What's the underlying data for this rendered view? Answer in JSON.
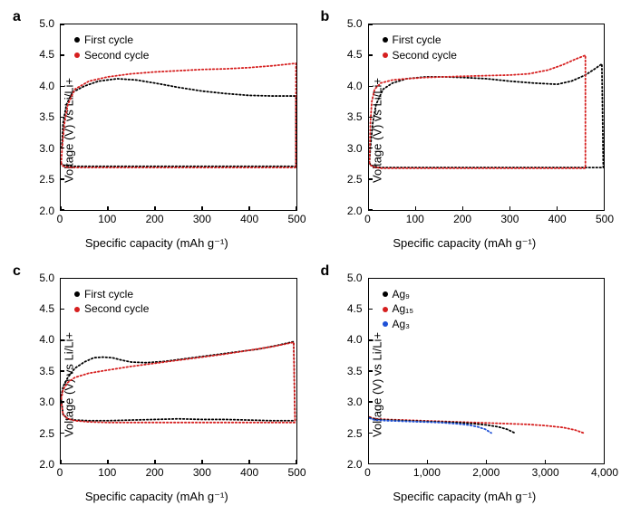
{
  "colors": {
    "first": "#000000",
    "second": "#d61f1f",
    "ag9": "#000000",
    "ag15": "#d61f1f",
    "ag3": "#1e50d6",
    "axis": "#000000",
    "bg": "#ffffff"
  },
  "axis_label_fontsize": 13,
  "tick_fontsize": 12,
  "panel_label_fontsize": 16,
  "legend_fontsize": 12,
  "panels": {
    "a": {
      "label": "a",
      "ylabel": "Voltage (V) vs Li/Li+",
      "xlabel": "Specific capacity (mAh g⁻¹)",
      "xlim": [
        0,
        500
      ],
      "ylim": [
        2.0,
        5.0
      ],
      "xticks": [
        0,
        100,
        200,
        300,
        400,
        500
      ],
      "yticks": [
        2.0,
        2.5,
        3.0,
        3.5,
        4.0,
        4.5,
        5.0
      ],
      "legend": {
        "items": [
          {
            "label": "First cycle",
            "color": "#000000"
          },
          {
            "label": "Second cycle",
            "color": "#d61f1f"
          }
        ],
        "pos": "tl"
      },
      "series": [
        {
          "color": "#000000",
          "dashed": true,
          "pts": [
            [
              2,
              3.0
            ],
            [
              5,
              3.4
            ],
            [
              12,
              3.7
            ],
            [
              25,
              3.9
            ],
            [
              50,
              4.0
            ],
            [
              80,
              4.08
            ],
            [
              120,
              4.12
            ],
            [
              160,
              4.1
            ],
            [
              200,
              4.05
            ],
            [
              250,
              3.98
            ],
            [
              300,
              3.92
            ],
            [
              350,
              3.88
            ],
            [
              400,
              3.85
            ],
            [
              450,
              3.84
            ],
            [
              500,
              3.84
            ],
            [
              500,
              3.84
            ],
            [
              500,
              2.7
            ],
            [
              450,
              2.7
            ],
            [
              400,
              2.7
            ],
            [
              350,
              2.7
            ],
            [
              300,
              2.7
            ],
            [
              250,
              2.7
            ],
            [
              200,
              2.7
            ],
            [
              150,
              2.7
            ],
            [
              100,
              2.7
            ],
            [
              50,
              2.7
            ],
            [
              25,
              2.7
            ],
            [
              10,
              2.71
            ],
            [
              3,
              2.73
            ],
            [
              1,
              2.75
            ]
          ]
        },
        {
          "color": "#d61f1f",
          "dashed": true,
          "pts": [
            [
              1,
              2.75
            ],
            [
              3,
              3.0
            ],
            [
              8,
              3.4
            ],
            [
              15,
              3.7
            ],
            [
              30,
              3.95
            ],
            [
              60,
              4.08
            ],
            [
              100,
              4.15
            ],
            [
              150,
              4.2
            ],
            [
              200,
              4.23
            ],
            [
              250,
              4.25
            ],
            [
              300,
              4.27
            ],
            [
              350,
              4.28
            ],
            [
              400,
              4.3
            ],
            [
              450,
              4.33
            ],
            [
              500,
              4.37
            ],
            [
              500,
              2.68
            ],
            [
              450,
              2.68
            ],
            [
              400,
              2.68
            ],
            [
              350,
              2.68
            ],
            [
              300,
              2.68
            ],
            [
              250,
              2.68
            ],
            [
              200,
              2.68
            ],
            [
              150,
              2.68
            ],
            [
              100,
              2.68
            ],
            [
              50,
              2.68
            ],
            [
              25,
              2.68
            ],
            [
              10,
              2.69
            ],
            [
              3,
              2.71
            ],
            [
              1,
              2.74
            ]
          ]
        }
      ]
    },
    "b": {
      "label": "b",
      "ylabel": "Voltage (V) vs Li/Li+",
      "xlabel": "Specific capacity (mAh g⁻¹)",
      "xlim": [
        0,
        500
      ],
      "ylim": [
        2.0,
        5.0
      ],
      "xticks": [
        0,
        100,
        200,
        300,
        400,
        500
      ],
      "yticks": [
        2.0,
        2.5,
        3.0,
        3.5,
        4.0,
        4.5,
        5.0
      ],
      "legend": {
        "items": [
          {
            "label": "First cycle",
            "color": "#000000"
          },
          {
            "label": "Second cycle",
            "color": "#d61f1f"
          }
        ],
        "pos": "tl"
      },
      "series": [
        {
          "color": "#000000",
          "dashed": true,
          "pts": [
            [
              1,
              2.75
            ],
            [
              3,
              3.0
            ],
            [
              8,
              3.4
            ],
            [
              15,
              3.7
            ],
            [
              30,
              3.95
            ],
            [
              50,
              4.05
            ],
            [
              80,
              4.12
            ],
            [
              120,
              4.15
            ],
            [
              160,
              4.15
            ],
            [
              200,
              4.14
            ],
            [
              250,
              4.12
            ],
            [
              300,
              4.08
            ],
            [
              350,
              4.05
            ],
            [
              400,
              4.03
            ],
            [
              430,
              4.08
            ],
            [
              460,
              4.18
            ],
            [
              480,
              4.28
            ],
            [
              495,
              4.36
            ],
            [
              498,
              2.68
            ],
            [
              450,
              2.68
            ],
            [
              400,
              2.68
            ],
            [
              350,
              2.68
            ],
            [
              300,
              2.68
            ],
            [
              250,
              2.68
            ],
            [
              200,
              2.68
            ],
            [
              150,
              2.68
            ],
            [
              100,
              2.68
            ],
            [
              50,
              2.68
            ],
            [
              25,
              2.68
            ],
            [
              10,
              2.7
            ],
            [
              3,
              2.73
            ],
            [
              1,
              2.76
            ]
          ]
        },
        {
          "color": "#d61f1f",
          "dashed": true,
          "pts": [
            [
              1,
              2.75
            ],
            [
              3,
              3.4
            ],
            [
              6,
              3.75
            ],
            [
              12,
              3.95
            ],
            [
              25,
              4.05
            ],
            [
              50,
              4.1
            ],
            [
              80,
              4.12
            ],
            [
              120,
              4.14
            ],
            [
              160,
              4.15
            ],
            [
              200,
              4.16
            ],
            [
              250,
              4.17
            ],
            [
              300,
              4.18
            ],
            [
              340,
              4.2
            ],
            [
              380,
              4.26
            ],
            [
              410,
              4.34
            ],
            [
              440,
              4.44
            ],
            [
              460,
              4.5
            ],
            [
              460,
              2.67
            ],
            [
              400,
              2.67
            ],
            [
              350,
              2.67
            ],
            [
              300,
              2.67
            ],
            [
              250,
              2.67
            ],
            [
              200,
              2.67
            ],
            [
              150,
              2.67
            ],
            [
              100,
              2.67
            ],
            [
              50,
              2.67
            ],
            [
              25,
              2.67
            ],
            [
              10,
              2.69
            ],
            [
              3,
              2.72
            ],
            [
              1,
              2.75
            ]
          ]
        }
      ]
    },
    "c": {
      "label": "c",
      "ylabel": "Voltage (V) vs Li/Li+",
      "xlabel": "Specific capacity (mAh g⁻¹)",
      "xlim": [
        0,
        500
      ],
      "ylim": [
        2.0,
        5.0
      ],
      "xticks": [
        0,
        100,
        200,
        300,
        400,
        500
      ],
      "yticks": [
        2.0,
        2.5,
        3.0,
        3.5,
        4.0,
        4.5,
        5.0
      ],
      "legend": {
        "items": [
          {
            "label": "First cycle",
            "color": "#000000"
          },
          {
            "label": "Second cycle",
            "color": "#d61f1f"
          }
        ],
        "pos": "tl"
      },
      "series": [
        {
          "color": "#000000",
          "dashed": true,
          "pts": [
            [
              1,
              3.1
            ],
            [
              5,
              3.25
            ],
            [
              15,
              3.4
            ],
            [
              30,
              3.55
            ],
            [
              50,
              3.65
            ],
            [
              70,
              3.72
            ],
            [
              90,
              3.73
            ],
            [
              110,
              3.72
            ],
            [
              130,
              3.68
            ],
            [
              150,
              3.65
            ],
            [
              180,
              3.64
            ],
            [
              220,
              3.66
            ],
            [
              260,
              3.7
            ],
            [
              300,
              3.74
            ],
            [
              340,
              3.78
            ],
            [
              380,
              3.82
            ],
            [
              420,
              3.86
            ],
            [
              460,
              3.92
            ],
            [
              495,
              3.98
            ],
            [
              498,
              2.7
            ],
            [
              450,
              2.7
            ],
            [
              400,
              2.71
            ],
            [
              350,
              2.72
            ],
            [
              300,
              2.72
            ],
            [
              250,
              2.73
            ],
            [
              200,
              2.72
            ],
            [
              150,
              2.71
            ],
            [
              100,
              2.7
            ],
            [
              60,
              2.7
            ],
            [
              30,
              2.71
            ],
            [
              15,
              2.73
            ],
            [
              5,
              2.8
            ],
            [
              1,
              3.05
            ]
          ]
        },
        {
          "color": "#d61f1f",
          "dashed": true,
          "pts": [
            [
              1,
              3.05
            ],
            [
              5,
              3.2
            ],
            [
              15,
              3.32
            ],
            [
              30,
              3.4
            ],
            [
              60,
              3.47
            ],
            [
              100,
              3.52
            ],
            [
              150,
              3.58
            ],
            [
              200,
              3.63
            ],
            [
              250,
              3.68
            ],
            [
              300,
              3.73
            ],
            [
              350,
              3.78
            ],
            [
              400,
              3.84
            ],
            [
              450,
              3.9
            ],
            [
              495,
              3.97
            ],
            [
              498,
              2.67
            ],
            [
              450,
              2.67
            ],
            [
              400,
              2.67
            ],
            [
              350,
              2.67
            ],
            [
              300,
              2.67
            ],
            [
              250,
              2.67
            ],
            [
              200,
              2.67
            ],
            [
              150,
              2.67
            ],
            [
              100,
              2.67
            ],
            [
              60,
              2.68
            ],
            [
              30,
              2.7
            ],
            [
              15,
              2.73
            ],
            [
              5,
              2.8
            ],
            [
              1,
              3.0
            ]
          ]
        }
      ]
    },
    "d": {
      "label": "d",
      "ylabel": "Voltage (V) vs Li/Li+",
      "xlabel": "Specific capacity (mAh g⁻¹)",
      "xlim": [
        0,
        4000
      ],
      "ylim": [
        2.0,
        5.0
      ],
      "xticks": [
        0,
        1000,
        2000,
        3000,
        4000
      ],
      "xtick_labels": [
        "0",
        "1,000",
        "2,000",
        "3,000",
        "4,000"
      ],
      "yticks": [
        2.0,
        2.5,
        3.0,
        3.5,
        4.0,
        4.5,
        5.0
      ],
      "legend": {
        "items": [
          {
            "label": "Ag₉",
            "color": "#000000"
          },
          {
            "label": "Ag₁₅",
            "color": "#d61f1f"
          },
          {
            "label": "Ag₃",
            "color": "#1e50d6"
          }
        ],
        "pos": "tl"
      },
      "series": [
        {
          "color": "#d61f1f",
          "dashed": true,
          "pts": [
            [
              10,
              2.76
            ],
            [
              100,
              2.73
            ],
            [
              300,
              2.72
            ],
            [
              600,
              2.71
            ],
            [
              900,
              2.7
            ],
            [
              1200,
              2.69
            ],
            [
              1500,
              2.68
            ],
            [
              1800,
              2.67
            ],
            [
              2100,
              2.66
            ],
            [
              2400,
              2.65
            ],
            [
              2700,
              2.64
            ],
            [
              3000,
              2.62
            ],
            [
              3300,
              2.59
            ],
            [
              3500,
              2.55
            ],
            [
              3650,
              2.5
            ]
          ]
        },
        {
          "color": "#000000",
          "dashed": true,
          "pts": [
            [
              10,
              2.75
            ],
            [
              100,
              2.72
            ],
            [
              300,
              2.71
            ],
            [
              600,
              2.7
            ],
            [
              900,
              2.69
            ],
            [
              1200,
              2.68
            ],
            [
              1500,
              2.67
            ],
            [
              1800,
              2.65
            ],
            [
              2000,
              2.63
            ],
            [
              2200,
              2.6
            ],
            [
              2350,
              2.56
            ],
            [
              2480,
              2.5
            ]
          ]
        },
        {
          "color": "#1e50d6",
          "dashed": true,
          "pts": [
            [
              10,
              2.74
            ],
            [
              100,
              2.71
            ],
            [
              300,
              2.7
            ],
            [
              600,
              2.69
            ],
            [
              900,
              2.68
            ],
            [
              1200,
              2.67
            ],
            [
              1500,
              2.65
            ],
            [
              1700,
              2.63
            ],
            [
              1850,
              2.6
            ],
            [
              1980,
              2.56
            ],
            [
              2080,
              2.5
            ]
          ]
        }
      ]
    }
  }
}
